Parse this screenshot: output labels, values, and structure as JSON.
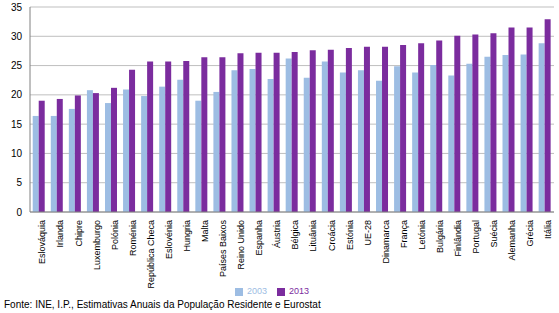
{
  "chart_data": {
    "type": "bar",
    "source": "Fonte: INE, I.P., Estimativas Anuais da População Residente e Eurostat",
    "categories": [
      "Eslováquia",
      "Irlanda",
      "Chipre",
      "Luxemburgo",
      "Polónia",
      "Roménia",
      "República Checa",
      "Eslovénia",
      "Hungria",
      "Malta",
      "Países Baixos",
      "Reino Unido",
      "Espanha",
      "Áustria",
      "Bélgica",
      "Lituânia",
      "Croácia",
      "Estónia",
      "UE-28",
      "Dinamarca",
      "França",
      "Letónia",
      "Bulgária",
      "Finlândia",
      "Portugal",
      "Suécia",
      "Alemanha",
      "Grécia",
      "Itália"
    ],
    "series": [
      {
        "name": "2003",
        "color": "#9dbde3",
        "values": [
          16.4,
          16.4,
          17.6,
          20.8,
          18.6,
          20.9,
          19.8,
          21.4,
          22.6,
          19.0,
          20.5,
          24.2,
          24.4,
          22.7,
          26.2,
          22.9,
          25.7,
          23.8,
          24.2,
          22.4,
          24.9,
          23.8,
          25.1,
          23.3,
          25.3,
          26.5,
          26.8,
          26.9,
          28.8
        ]
      },
      {
        "name": "2013",
        "color": "#7b2c9e",
        "values": [
          19.0,
          19.3,
          19.9,
          20.3,
          21.2,
          24.3,
          25.7,
          25.7,
          25.8,
          26.4,
          26.4,
          27.1,
          27.2,
          27.2,
          27.3,
          27.6,
          27.7,
          28.0,
          28.2,
          28.2,
          28.5,
          28.8,
          29.3,
          30.1,
          30.3,
          30.5,
          31.5,
          31.5,
          32.9
        ]
      }
    ],
    "ylim": [
      0,
      35
    ],
    "yticks": [
      0,
      5,
      10,
      15,
      20,
      25,
      30,
      35
    ],
    "grid": true,
    "legend": "bottom"
  }
}
